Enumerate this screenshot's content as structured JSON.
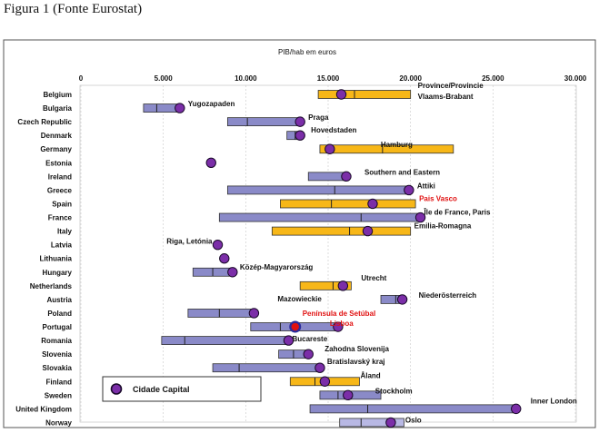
{
  "caption": "Figura 1 (Fonte Eurostat)",
  "chart_data": {
    "type": "range-bar",
    "title": "PIB/hab em euros",
    "xlim": [
      0,
      30000
    ],
    "xticks": [
      0,
      5000,
      10000,
      15000,
      20000,
      25000,
      30000
    ],
    "xtick_labels": [
      "0",
      "5.000",
      "10.000",
      "15.000",
      "20.000",
      "25.000",
      "30.000"
    ],
    "legend_label": "Cidade Capital",
    "colors": {
      "blue": "#8a8ac8",
      "orange": "#f7b718",
      "dot": "#7b2ea8",
      "red": "#e01010"
    },
    "rows": [
      {
        "country": "Belgium",
        "min": 14400,
        "max": 20000,
        "split": 16600,
        "color": "orange",
        "capital": 15800,
        "label": "Province/Provincie\nVlaams-Brabant",
        "label_color": "black"
      },
      {
        "country": "Bulgaria",
        "min": 3800,
        "max": 6000,
        "split": 4600,
        "color": "blue",
        "capital": 6000,
        "label": "Yugozapaden",
        "label_color": "black"
      },
      {
        "country": "Czech Republic",
        "min": 8900,
        "max": 13300,
        "split": 10100,
        "color": "blue",
        "capital": 13300,
        "label": "Praga",
        "label_color": "black"
      },
      {
        "country": "Denmark",
        "min": 12500,
        "max": 13300,
        "split": 13000,
        "color": "blue",
        "capital": 13300,
        "label": "Hovedstaden",
        "label_color": "black"
      },
      {
        "country": "Germany",
        "min": 14500,
        "max": 22600,
        "split": 18300,
        "color": "orange",
        "capital": 15100,
        "label": "Hamburg",
        "label_color": "black"
      },
      {
        "country": "Estonia",
        "min": null,
        "max": null,
        "split": null,
        "color": "blue",
        "capital": 7900,
        "label": "",
        "label_color": "black"
      },
      {
        "country": "Ireland",
        "min": 13800,
        "max": 16200,
        "split": null,
        "color": "blue",
        "capital": 16100,
        "label": "Southern and Eastern",
        "label_color": "black"
      },
      {
        "country": "Greece",
        "min": 8900,
        "max": 19900,
        "split": 15400,
        "color": "blue",
        "capital": 19900,
        "label": "Attiki",
        "label_color": "black"
      },
      {
        "country": "Spain",
        "min": 12100,
        "max": 20300,
        "split": 15200,
        "color": "orange",
        "capital": 17700,
        "label": "Pais Vasco",
        "label_color": "red"
      },
      {
        "country": "France",
        "min": 8400,
        "max": 20600,
        "split": 17000,
        "color": "blue",
        "capital": 20600,
        "label": "Île de France, Paris",
        "label_color": "black"
      },
      {
        "country": "Italy",
        "min": 11600,
        "max": 20000,
        "split": 16300,
        "color": "orange",
        "capital": 17400,
        "label": "Emilia-Romagna",
        "label_color": "black"
      },
      {
        "country": "Latvia",
        "min": null,
        "max": null,
        "split": null,
        "color": "blue",
        "capital": 8300,
        "label": "Riga, Letónia",
        "label_color": "black"
      },
      {
        "country": "Lithuania",
        "min": null,
        "max": null,
        "split": null,
        "color": "blue",
        "capital": 8700,
        "label": "",
        "label_color": "black"
      },
      {
        "country": "Hungary",
        "min": 6800,
        "max": 9200,
        "split": 8000,
        "color": "blue",
        "capital": 9200,
        "label": "Közép-Magyarország",
        "label_color": "black"
      },
      {
        "country": "Netherlands",
        "min": 13300,
        "max": 16400,
        "split": 15300,
        "color": "orange",
        "capital": 15900,
        "label": "Utrecht",
        "label_color": "black"
      },
      {
        "country": "Austria",
        "min": 18200,
        "max": 19500,
        "split": 19100,
        "color": "blue",
        "capital": 19500,
        "label": "Niederösterreich",
        "label_color": "black"
      },
      {
        "country": "Poland",
        "min": 6500,
        "max": 10500,
        "split": 8400,
        "color": "blue",
        "capital": 10500,
        "label": "Mazowieckie",
        "label_color": "black"
      },
      {
        "country": "Portugal",
        "min": 10300,
        "max": 15600,
        "split": 12100,
        "color": "blue",
        "capital": 15600,
        "label": "Lisboa",
        "label_color": "red",
        "highlight": 13000,
        "highlight_label": "Península de Setúbal"
      },
      {
        "country": "Romania",
        "min": 4900,
        "max": 12600,
        "split": 6300,
        "color": "blue",
        "capital": 12600,
        "label": "Bucareste",
        "label_color": "black"
      },
      {
        "country": "Slovenia",
        "min": 12000,
        "max": 13800,
        "split": 12900,
        "color": "blue",
        "capital": 13800,
        "label": "Zahodna Slovenija",
        "label_color": "black"
      },
      {
        "country": "Slovakia",
        "min": 8000,
        "max": 14500,
        "split": 9600,
        "color": "blue",
        "capital": 14500,
        "label": "Bratislavský kraj",
        "label_color": "black"
      },
      {
        "country": "Finland",
        "min": 12700,
        "max": 16900,
        "split": 14200,
        "color": "orange",
        "capital": 14800,
        "label": "Åland",
        "label_color": "black"
      },
      {
        "country": "Sweden",
        "min": 14500,
        "max": 18200,
        "split": 15600,
        "color": "blue",
        "capital": 16200,
        "label": "Stockholm",
        "label_color": "black"
      },
      {
        "country": "United Kingdom",
        "min": 13900,
        "max": 26400,
        "split": 17400,
        "color": "blue",
        "capital": 26400,
        "label": "Inner London",
        "label_color": "black"
      },
      {
        "country": "Norway",
        "min": 15700,
        "max": 19600,
        "split": 17000,
        "color": "lightblue",
        "capital": 18800,
        "label": "Oslo",
        "label_color": "black"
      }
    ]
  }
}
